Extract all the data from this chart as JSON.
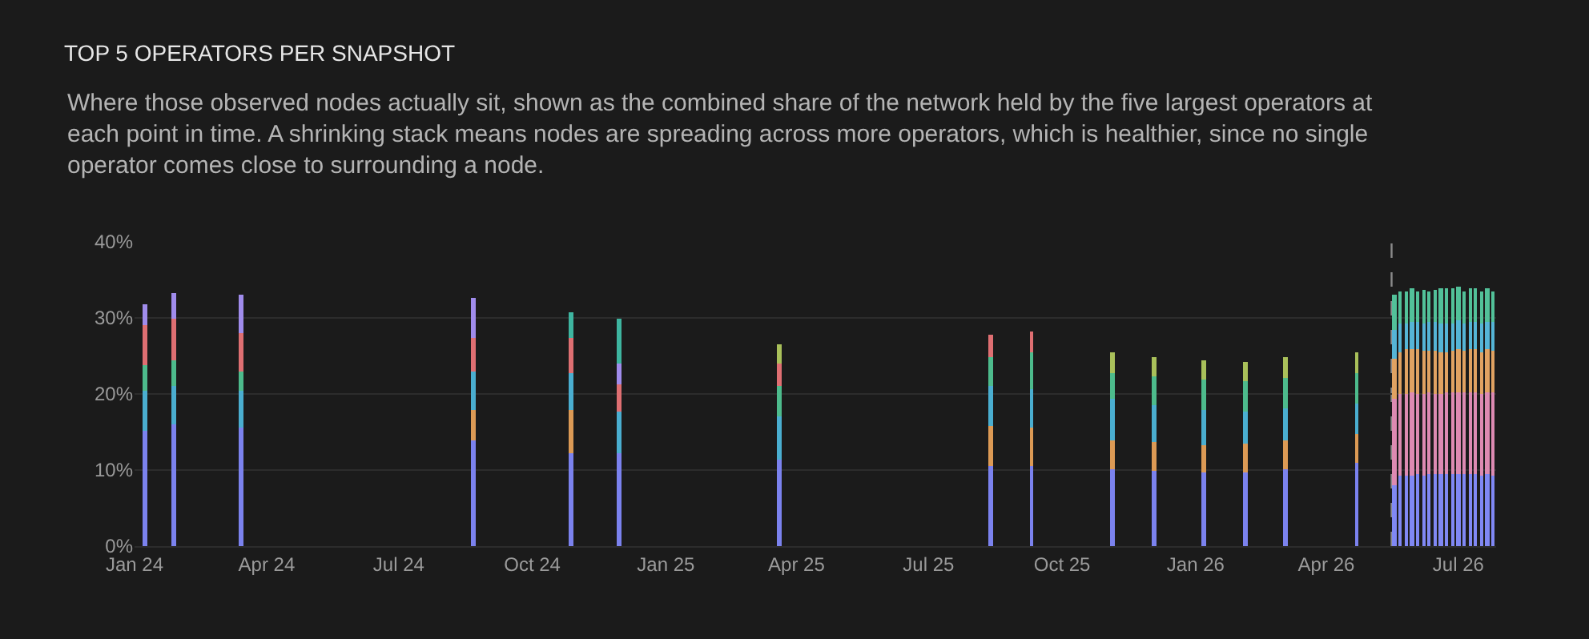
{
  "chart_data": {
    "type": "bar",
    "stacked": true,
    "title": "TOP 5 OPERATORS PER SNAPSHOT",
    "subtitle": "Where those observed nodes actually sit, shown as the combined share of the network held by the five largest operators at each point in time. A shrinking stack means nodes are spreading across more operators, which is healthier, since no single operator comes close to surrounding a node.",
    "x": [
      "2024-01-08",
      "2024-01-28",
      "2024-03-14",
      "2024-08-21",
      "2024-10-28",
      "2024-11-30",
      "2025-03-20",
      "2025-08-13",
      "2025-09-10",
      "2025-11-05",
      "2025-12-03",
      "2026-01-07",
      "2026-02-04",
      "2026-03-04",
      "2026-04-22",
      "2026-05-18",
      "2026-05-22",
      "2026-05-26",
      "2026-05-30",
      "2026-06-03",
      "2026-06-07",
      "2026-06-11",
      "2026-06-15",
      "2026-06-19",
      "2026-06-23",
      "2026-06-27",
      "2026-07-01",
      "2026-07-05",
      "2026-07-09",
      "2026-07-13",
      "2026-07-17",
      "2026-07-21",
      "2026-07-25"
    ],
    "series": [
      {
        "colors": [
          "#7b82ee",
          "#7b82ee",
          "#7b82ee",
          "#7b82ee",
          "#7b82ee",
          "#7b82ee",
          "#7b82ee",
          "#7b82ee",
          "#7b82ee",
          "#7b82ee",
          "#7b82ee",
          "#7b82ee",
          "#7b82ee",
          "#7b82ee",
          "#7b82ee",
          "#8088f4",
          "#8088f4",
          "#8088f4",
          "#8088f4",
          "#8088f4",
          "#8088f4",
          "#8088f4",
          "#8088f4",
          "#8088f4",
          "#8088f4",
          "#8088f4",
          "#8088f4",
          "#8088f4",
          "#8088f4",
          "#8088f4",
          "#8088f4",
          "#8088f4",
          "#8088f4"
        ],
        "values": [
          15.1,
          15.9,
          15.5,
          13.8,
          12.3,
          12.3,
          11.4,
          10.5,
          10.6,
          10.2,
          9.9,
          9.7,
          9.7,
          10.2,
          10.9,
          8.0,
          9.3,
          9.3,
          9.3,
          9.4,
          9.3,
          9.4,
          9.4,
          9.4,
          9.4,
          9.4,
          9.5,
          9.5,
          9.4,
          9.4,
          9.3,
          9.5,
          9.3
        ]
      },
      {
        "colors": [
          "#4aaed0",
          "#4aaed0",
          "#4aaed0",
          "#dc9a55",
          "#dc9a55",
          "#4aaed0",
          "#4aaed0",
          "#dc9a55",
          "#dc9a55",
          "#dc9a55",
          "#dc9a55",
          "#dc9a55",
          "#dc9a55",
          "#dc9a55",
          "#dc9a55",
          "#dd8ab2",
          "#dd8ab2",
          "#dd8ab2",
          "#dd8ab2",
          "#dd8ab2",
          "#dd8ab2",
          "#dd8ab2",
          "#dd8ab2",
          "#dd8ab2",
          "#dd8ab2",
          "#dd8ab2",
          "#dd8ab2",
          "#dd8ab2",
          "#dd8ab2",
          "#dd8ab2",
          "#dd8ab2",
          "#dd8ab2",
          "#dd8ab2"
        ],
        "values": [
          5.3,
          5.2,
          5.0,
          4.1,
          5.6,
          5.3,
          5.6,
          5.3,
          5.0,
          3.7,
          3.8,
          3.6,
          3.7,
          3.7,
          3.8,
          11.4,
          10.7,
          10.8,
          10.9,
          10.6,
          10.8,
          10.8,
          10.7,
          10.6,
          10.8,
          10.8,
          10.8,
          10.8,
          10.9,
          10.8,
          10.8,
          10.7,
          10.9
        ]
      },
      {
        "colors": [
          "#4dbb8c",
          "#4dbb8c",
          "#4dbb8c",
          "#4aaed0",
          "#4aaed0",
          "#df6f72",
          "#4dbb8c",
          "#4aaed0",
          "#4aaed0",
          "#4aaed0",
          "#4aaed0",
          "#4aaed0",
          "#4aaed0",
          "#4aaed0",
          "#4aaed0",
          "#e0a262",
          "#e0a262",
          "#e0a262",
          "#e0a262",
          "#e0a262",
          "#e0a262",
          "#e0a262",
          "#e0a262",
          "#e0a262",
          "#e0a262",
          "#e0a262",
          "#e0a262",
          "#e0a262",
          "#e0a262",
          "#e0a262",
          "#e0a262",
          "#e0a262",
          "#e0a262"
        ],
        "values": [
          3.3,
          3.3,
          2.5,
          5.1,
          4.9,
          3.6,
          4.0,
          5.3,
          5.1,
          5.4,
          4.9,
          4.6,
          4.3,
          4.2,
          4.1,
          5.2,
          5.4,
          5.7,
          5.6,
          5.8,
          5.6,
          5.4,
          5.5,
          5.4,
          5.3,
          5.5,
          5.6,
          5.4,
          5.5,
          5.6,
          5.4,
          5.6,
          5.5
        ]
      },
      {
        "colors": [
          "#df6f72",
          "#df6f72",
          "#df6f72",
          "#df6f72",
          "#df6f72",
          "#a08cec",
          "#df6f72",
          "#4dbb8c",
          "#4dbb8c",
          "#4dbb8c",
          "#4dbb8c",
          "#4dbb8c",
          "#4dbb8c",
          "#4dbb8c",
          "#4dbb8c",
          "#55b5d6",
          "#55b5d6",
          "#55b5d6",
          "#55b5d6",
          "#55b5d6",
          "#55b5d6",
          "#55b5d6",
          "#55b5d6",
          "#55b5d6",
          "#55b5d6",
          "#55b5d6",
          "#55b5d6",
          "#55b5d6",
          "#55b5d6",
          "#55b5d6",
          "#55b5d6",
          "#55b5d6",
          "#55b5d6"
        ],
        "values": [
          5.4,
          5.4,
          5.0,
          4.3,
          4.5,
          2.9,
          3.0,
          3.7,
          4.7,
          3.5,
          3.8,
          3.9,
          3.9,
          4.0,
          3.9,
          3.9,
          3.8,
          3.5,
          3.6,
          3.7,
          3.6,
          3.9,
          3.8,
          3.9,
          3.8,
          3.6,
          3.7,
          3.6,
          3.7,
          3.6,
          3.7,
          3.6,
          3.7
        ]
      },
      {
        "colors": [
          "#a08cec",
          "#a08cec",
          "#a08cec",
          "#a08cec",
          "#3eb5a0",
          "#3eb5a0",
          "#a9c05a",
          "#df6f72",
          "#df6f72",
          "#a9c05a",
          "#a9c05a",
          "#a9c05a",
          "#a9c05a",
          "#a9c05a",
          "#a9c05a",
          "#52c199",
          "#52c199",
          "#52c199",
          "#52c199",
          "#52c199",
          "#52c199",
          "#52c199",
          "#52c199",
          "#52c199",
          "#52c199",
          "#52c199",
          "#52c199",
          "#52c199",
          "#52c199",
          "#52c199",
          "#52c199",
          "#52c199",
          "#52c199"
        ],
        "values": [
          2.6,
          3.5,
          5.1,
          5.4,
          3.4,
          5.9,
          2.5,
          2.9,
          2.8,
          2.6,
          2.4,
          2.6,
          2.6,
          2.8,
          2.7,
          4.6,
          4.3,
          4.2,
          4.5,
          4.0,
          4.3,
          4.0,
          4.3,
          4.5,
          4.6,
          4.5,
          4.5,
          4.2,
          4.5,
          4.4,
          4.2,
          4.4,
          4.1
        ]
      }
    ],
    "xlim": [
      "2024-01-01",
      "2026-07-27"
    ],
    "xticks": [
      {
        "value": "2024-01-01",
        "label": "Jan 24"
      },
      {
        "value": "2024-04-01",
        "label": "Apr 24"
      },
      {
        "value": "2024-07-01",
        "label": "Jul 24"
      },
      {
        "value": "2024-10-01",
        "label": "Oct 24"
      },
      {
        "value": "2025-01-01",
        "label": "Jan 25"
      },
      {
        "value": "2025-04-01",
        "label": "Apr 25"
      },
      {
        "value": "2025-07-01",
        "label": "Jul 25"
      },
      {
        "value": "2025-10-01",
        "label": "Oct 25"
      },
      {
        "value": "2026-01-01",
        "label": "Jan 26"
      },
      {
        "value": "2026-04-01",
        "label": "Apr 26"
      },
      {
        "value": "2026-07-01",
        "label": "Jul 26"
      }
    ],
    "ylim": [
      0,
      40
    ],
    "yticks": [
      {
        "value": 0,
        "label": "0%"
      },
      {
        "value": 10,
        "label": "10%"
      },
      {
        "value": 20,
        "label": "20%"
      },
      {
        "value": 30,
        "label": "30%"
      },
      {
        "value": 40,
        "label": "40%"
      }
    ],
    "grid": "y",
    "ref_lines": [
      {
        "axis": "x",
        "value": "2026-05-16",
        "color": "#8a8a8a",
        "line_style": "dashed"
      }
    ]
  }
}
